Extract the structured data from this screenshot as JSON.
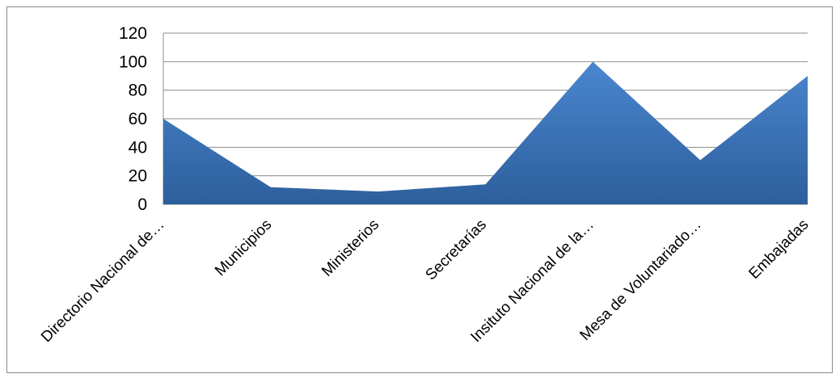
{
  "chart_data": {
    "type": "area",
    "categories": [
      "Directorio Nacional de…",
      "Municipios",
      "Ministerios",
      "Secretarías",
      "Insituto Nacional de la…",
      "Mesa de Voluntariado…",
      "Embajadas"
    ],
    "values": [
      60,
      12,
      9,
      14,
      100,
      31,
      90
    ],
    "ylim": [
      0,
      120
    ],
    "yticks": [
      "0",
      "20",
      "40",
      "60",
      "80",
      "100",
      "120"
    ],
    "grid": true,
    "legend": "none",
    "colors": {
      "fill_top": "#4a86cf",
      "fill_bottom": "#2d5f9c",
      "gridline": "#8c8c8c"
    }
  }
}
